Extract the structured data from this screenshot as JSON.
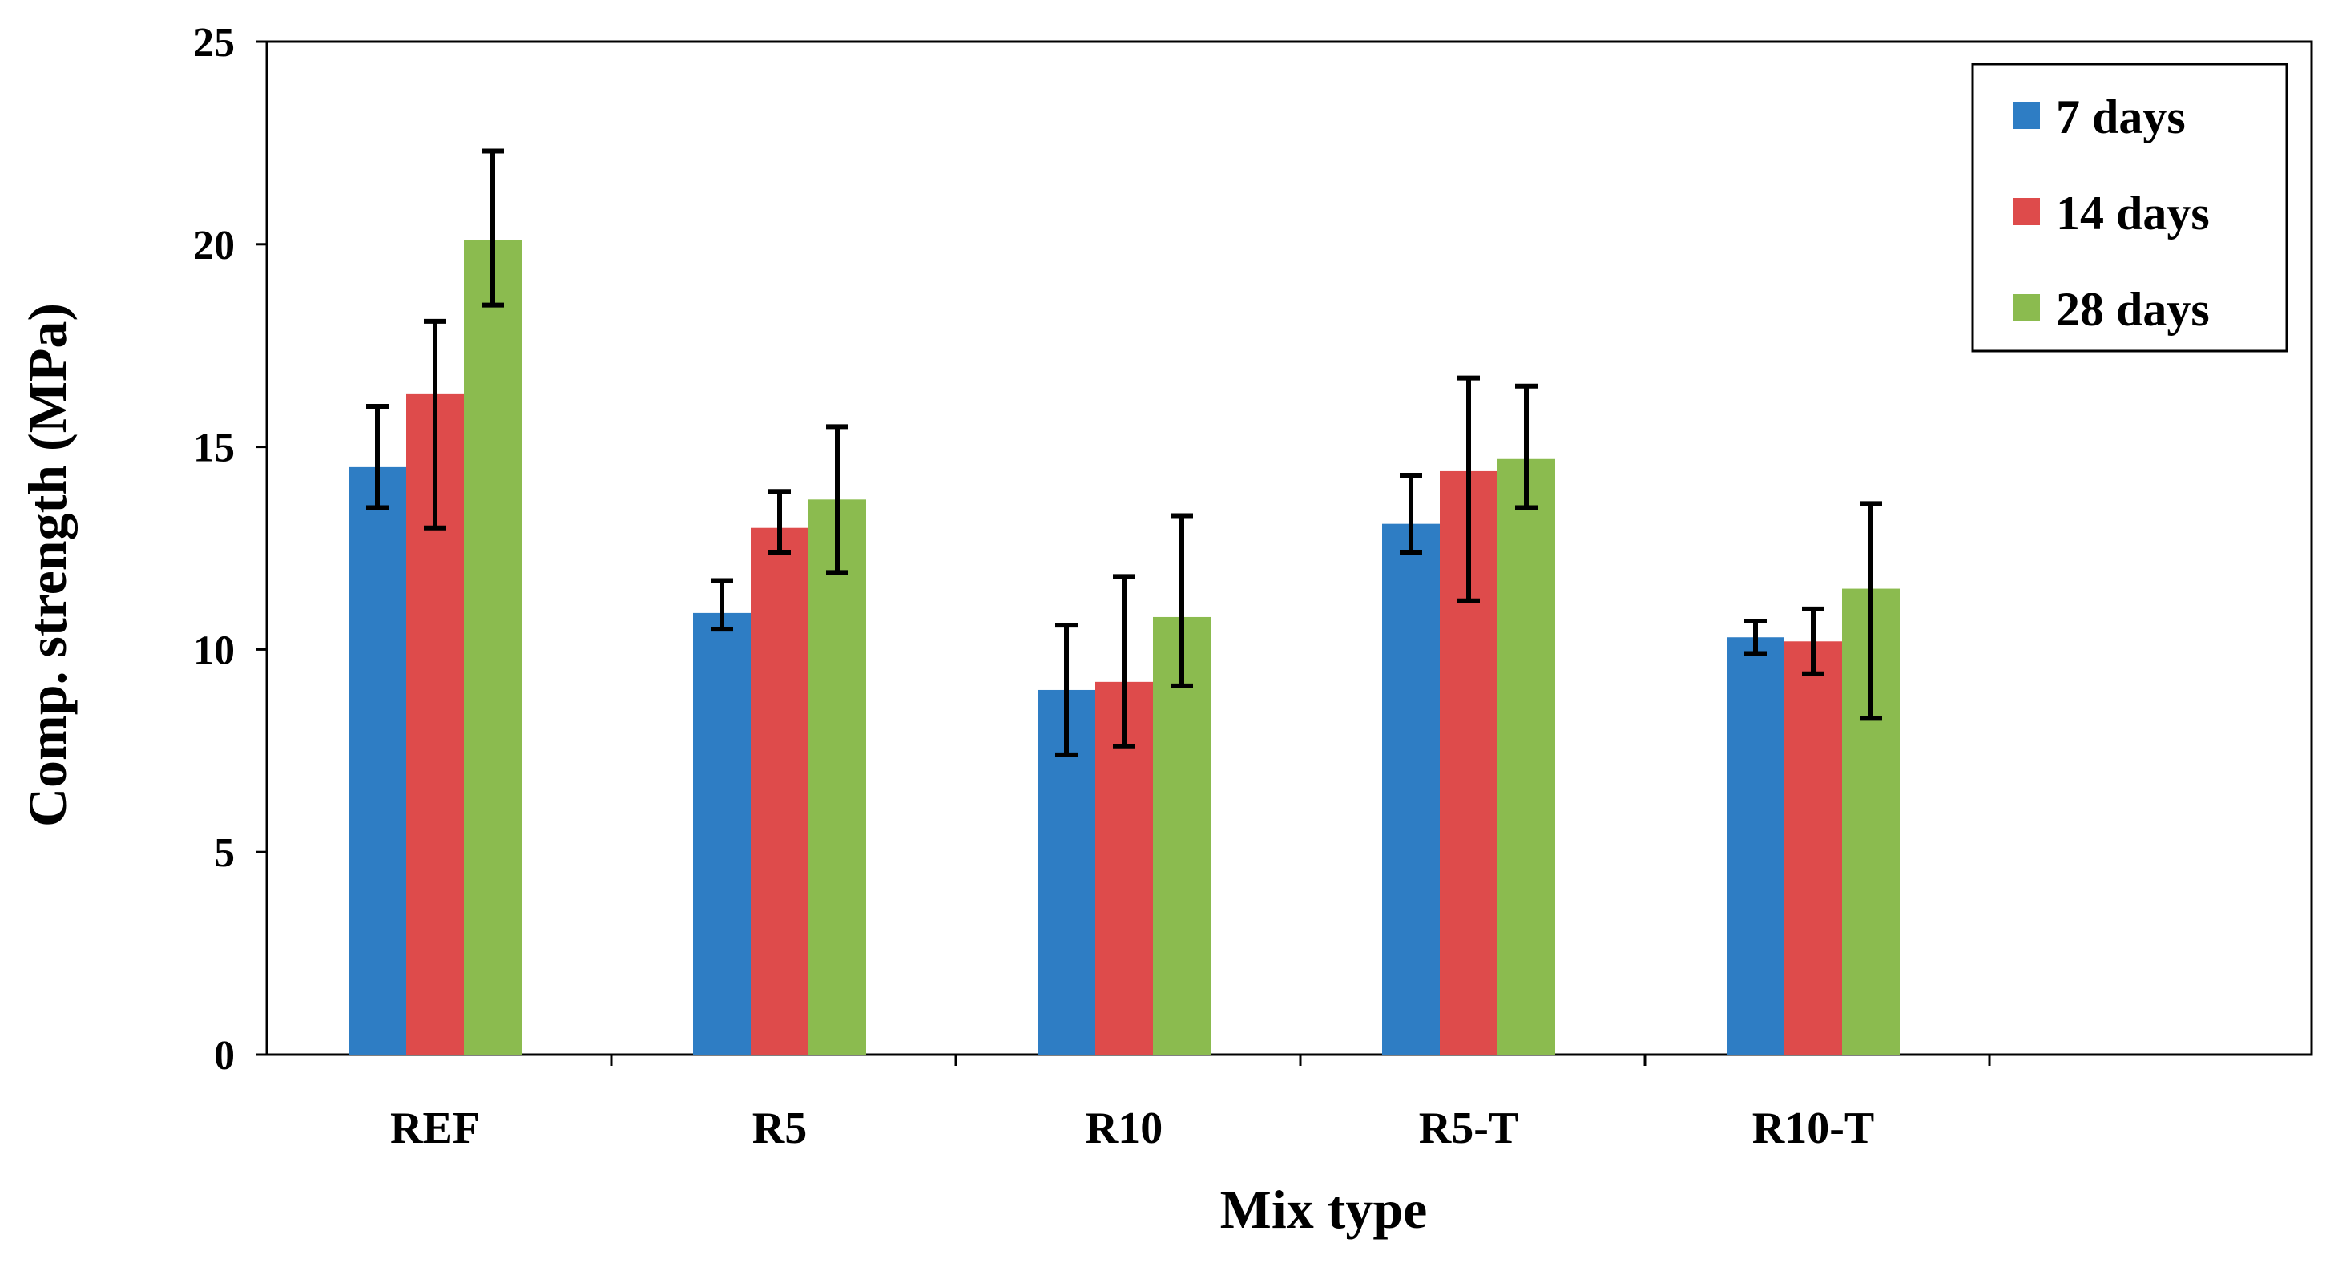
{
  "chart_data": {
    "type": "bar",
    "title": "",
    "xlabel": "Mix type",
    "ylabel": "Comp. strength (MPa)",
    "ylim": [
      0,
      25
    ],
    "yticks": [
      "0",
      "5",
      "10",
      "15",
      "20",
      "25"
    ],
    "categories": [
      "REF",
      "R5",
      "R10",
      "R5-T",
      "R10-T"
    ],
    "legend_position": "top-right",
    "grid": false,
    "series": [
      {
        "name": "7 days",
        "color": "#2E7DC4",
        "values": [
          14.5,
          10.9,
          9.0,
          13.1,
          10.3
        ],
        "err_low": [
          13.5,
          10.5,
          7.4,
          12.4,
          9.9
        ],
        "err_high": [
          16.0,
          11.7,
          10.6,
          14.3,
          10.7
        ]
      },
      {
        "name": "14 days",
        "color": "#DE4B4B",
        "values": [
          16.3,
          13.0,
          9.2,
          14.4,
          10.2
        ],
        "err_low": [
          13.0,
          12.4,
          7.6,
          11.2,
          9.4
        ],
        "err_high": [
          18.1,
          13.9,
          11.8,
          16.7,
          11.0
        ]
      },
      {
        "name": "28 days",
        "color": "#8BBB4F",
        "values": [
          20.1,
          13.7,
          10.8,
          14.7,
          11.5
        ],
        "err_low": [
          18.5,
          11.9,
          9.1,
          13.5,
          8.3
        ],
        "err_high": [
          22.3,
          15.5,
          13.3,
          16.5,
          13.6
        ]
      }
    ]
  }
}
